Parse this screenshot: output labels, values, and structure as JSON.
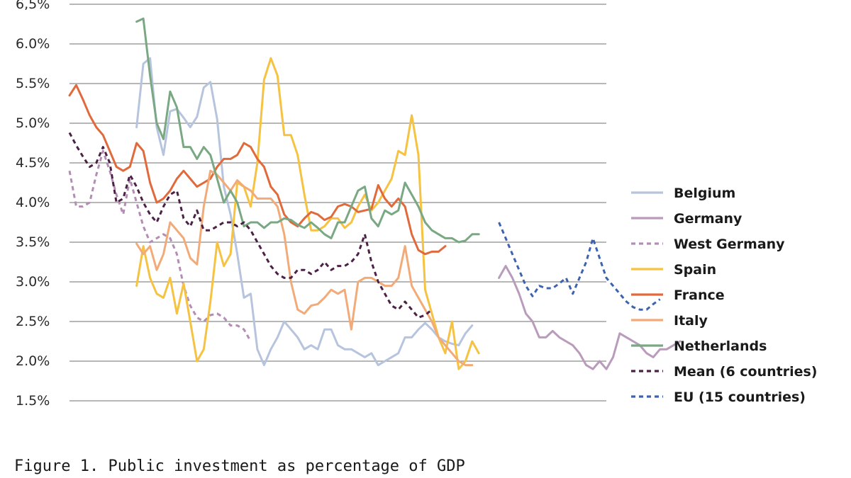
{
  "caption": "Figure 1. Public investment as percentage of GDP",
  "chart_data": {
    "type": "line",
    "ylim": [
      1.5,
      6.5
    ],
    "yticks": [
      {
        "value": 6.5,
        "label": "6,5%"
      },
      {
        "value": 6.0,
        "label": "6.0%"
      },
      {
        "value": 5.5,
        "label": "5.5%"
      },
      {
        "value": 5.0,
        "label": "5.0%"
      },
      {
        "value": 4.5,
        "label": "4.5%"
      },
      {
        "value": 4.0,
        "label": "4.0%"
      },
      {
        "value": 3.5,
        "label": "3.5%"
      },
      {
        "value": 3.0,
        "label": "3.0%"
      },
      {
        "value": 2.5,
        "label": "2.5%"
      },
      {
        "value": 2.0,
        "label": "2.0%"
      },
      {
        "value": 1.5,
        "label": "1.5%"
      }
    ],
    "grid": true,
    "legend_position": "right",
    "series": [
      {
        "name": "Belgium",
        "color": "#b7c4de",
        "dash": "solid",
        "start": 10,
        "values": [
          4.95,
          5.75,
          5.82,
          4.95,
          4.6,
          5.15,
          5.18,
          5.07,
          4.95,
          5.08,
          5.45,
          5.52,
          5.05,
          4.2,
          3.85,
          3.35,
          2.8,
          2.85,
          2.15,
          1.95,
          2.15,
          2.3,
          2.5,
          2.4,
          2.3,
          2.15,
          2.2,
          2.15,
          2.4,
          2.4,
          2.2,
          2.15,
          2.15,
          2.1,
          2.05,
          2.1,
          1.95,
          2.0,
          2.05,
          2.1,
          2.3,
          2.3,
          2.4,
          2.48,
          2.4,
          2.3,
          2.25,
          2.22,
          2.2,
          2.35,
          2.45
        ]
      },
      {
        "name": "Germany",
        "color": "#b99bbb",
        "dash": "solid",
        "start": 64,
        "values": [
          3.05,
          3.2,
          3.05,
          2.85,
          2.6,
          2.5,
          2.3,
          2.3,
          2.38,
          2.3,
          2.25,
          2.2,
          2.1,
          1.95,
          1.9,
          2.0,
          1.9,
          2.05,
          2.35,
          2.3,
          2.25,
          2.2,
          2.1,
          2.05,
          2.15,
          2.15,
          2.2,
          2.25
        ]
      },
      {
        "name": "West Germany",
        "color": "#b38db4",
        "dash": "dashed",
        "start": 0,
        "values": [
          4.4,
          3.95,
          3.95,
          4.0,
          4.35,
          4.65,
          4.4,
          4.1,
          3.85,
          4.3,
          4.0,
          3.7,
          3.5,
          3.55,
          3.6,
          3.55,
          3.35,
          2.95,
          2.7,
          2.55,
          2.5,
          2.58,
          2.6,
          2.55,
          2.45,
          2.45,
          2.4,
          2.25
        ]
      },
      {
        "name": "Spain",
        "color": "#f5c242",
        "dash": "solid",
        "start": 10,
        "values": [
          2.95,
          3.45,
          3.05,
          2.85,
          2.8,
          3.05,
          2.6,
          2.98,
          2.5,
          2.0,
          2.15,
          2.75,
          3.5,
          3.2,
          3.35,
          4.25,
          4.2,
          3.95,
          4.5,
          5.55,
          5.82,
          5.6,
          4.85,
          4.85,
          4.6,
          4.1,
          3.65,
          3.65,
          3.7,
          3.8,
          3.8,
          3.68,
          3.75,
          3.95,
          4.1,
          3.9,
          4.0,
          4.15,
          4.3,
          4.65,
          4.6,
          5.1,
          4.6,
          2.9,
          2.6,
          2.3,
          2.1,
          2.5,
          1.9,
          2.0,
          2.25,
          2.1
        ]
      },
      {
        "name": "France",
        "color": "#e06a3b",
        "dash": "solid",
        "start": 0,
        "values": [
          5.35,
          5.48,
          5.3,
          5.1,
          4.95,
          4.85,
          4.65,
          4.45,
          4.4,
          4.45,
          4.75,
          4.65,
          4.25,
          4.0,
          4.05,
          4.15,
          4.3,
          4.4,
          4.3,
          4.2,
          4.25,
          4.3,
          4.45,
          4.55,
          4.55,
          4.6,
          4.75,
          4.7,
          4.55,
          4.45,
          4.2,
          4.1,
          3.85,
          3.75,
          3.7,
          3.8,
          3.88,
          3.85,
          3.78,
          3.82,
          3.95,
          3.98,
          3.95,
          3.88,
          3.9,
          3.92,
          4.22,
          4.05,
          3.95,
          4.05,
          3.95,
          3.6,
          3.4,
          3.35,
          3.38,
          3.38,
          3.45
        ]
      },
      {
        "name": "Italy",
        "color": "#f2ab78",
        "dash": "solid",
        "start": 10,
        "values": [
          3.48,
          3.35,
          3.45,
          3.15,
          3.35,
          3.75,
          3.65,
          3.55,
          3.3,
          3.22,
          3.95,
          4.4,
          4.35,
          4.25,
          4.15,
          4.28,
          4.2,
          4.15,
          4.05,
          4.05,
          4.05,
          3.95,
          3.6,
          3.0,
          2.65,
          2.6,
          2.7,
          2.72,
          2.8,
          2.9,
          2.85,
          2.9,
          2.4,
          3.0,
          3.05,
          3.05,
          3.0,
          2.95,
          2.95,
          3.05,
          3.45,
          2.95,
          2.8,
          2.65,
          2.5,
          2.3,
          2.2,
          2.1,
          2.0,
          1.95,
          1.95
        ]
      },
      {
        "name": "Netherlands",
        "color": "#79a883",
        "dash": "solid",
        "start": 10,
        "values": [
          6.28,
          6.32,
          5.6,
          5.0,
          4.8,
          5.4,
          5.2,
          4.7,
          4.7,
          4.55,
          4.7,
          4.6,
          4.3,
          4.0,
          4.15,
          4.0,
          3.7,
          3.75,
          3.75,
          3.68,
          3.75,
          3.75,
          3.8,
          3.78,
          3.72,
          3.68,
          3.75,
          3.68,
          3.6,
          3.55,
          3.75,
          3.75,
          3.95,
          4.15,
          4.2,
          3.8,
          3.7,
          3.9,
          3.85,
          3.9,
          4.25,
          4.1,
          3.95,
          3.75,
          3.65,
          3.6,
          3.55,
          3.55,
          3.5,
          3.52,
          3.6,
          3.6
        ]
      },
      {
        "name": "Mean (6 countries)",
        "color": "#4b2145",
        "dash": "dashed",
        "start": 0,
        "values": [
          4.88,
          4.72,
          4.58,
          4.45,
          4.5,
          4.7,
          4.5,
          4.0,
          4.05,
          4.35,
          4.2,
          4.0,
          3.85,
          3.75,
          3.95,
          4.1,
          4.15,
          3.8,
          3.7,
          3.9,
          3.65,
          3.65,
          3.7,
          3.75,
          3.75,
          3.7,
          3.75,
          3.65,
          3.5,
          3.35,
          3.2,
          3.1,
          3.05,
          3.05,
          3.15,
          3.15,
          3.1,
          3.15,
          3.25,
          3.15,
          3.2,
          3.2,
          3.25,
          3.35,
          3.6,
          3.25,
          3.0,
          2.85,
          2.7,
          2.65,
          2.75,
          2.65,
          2.55,
          2.58,
          2.65
        ]
      },
      {
        "name": "EU (15 countries)",
        "color": "#3d63b0",
        "dash": "dashed",
        "start": 64,
        "values": [
          3.75,
          3.55,
          3.35,
          3.15,
          2.95,
          2.82,
          2.95,
          2.92,
          2.92,
          2.98,
          3.05,
          2.85,
          3.05,
          3.25,
          3.55,
          3.3,
          3.05,
          2.95,
          2.85,
          2.75,
          2.68,
          2.65,
          2.65,
          2.72,
          2.78
        ]
      }
    ]
  }
}
